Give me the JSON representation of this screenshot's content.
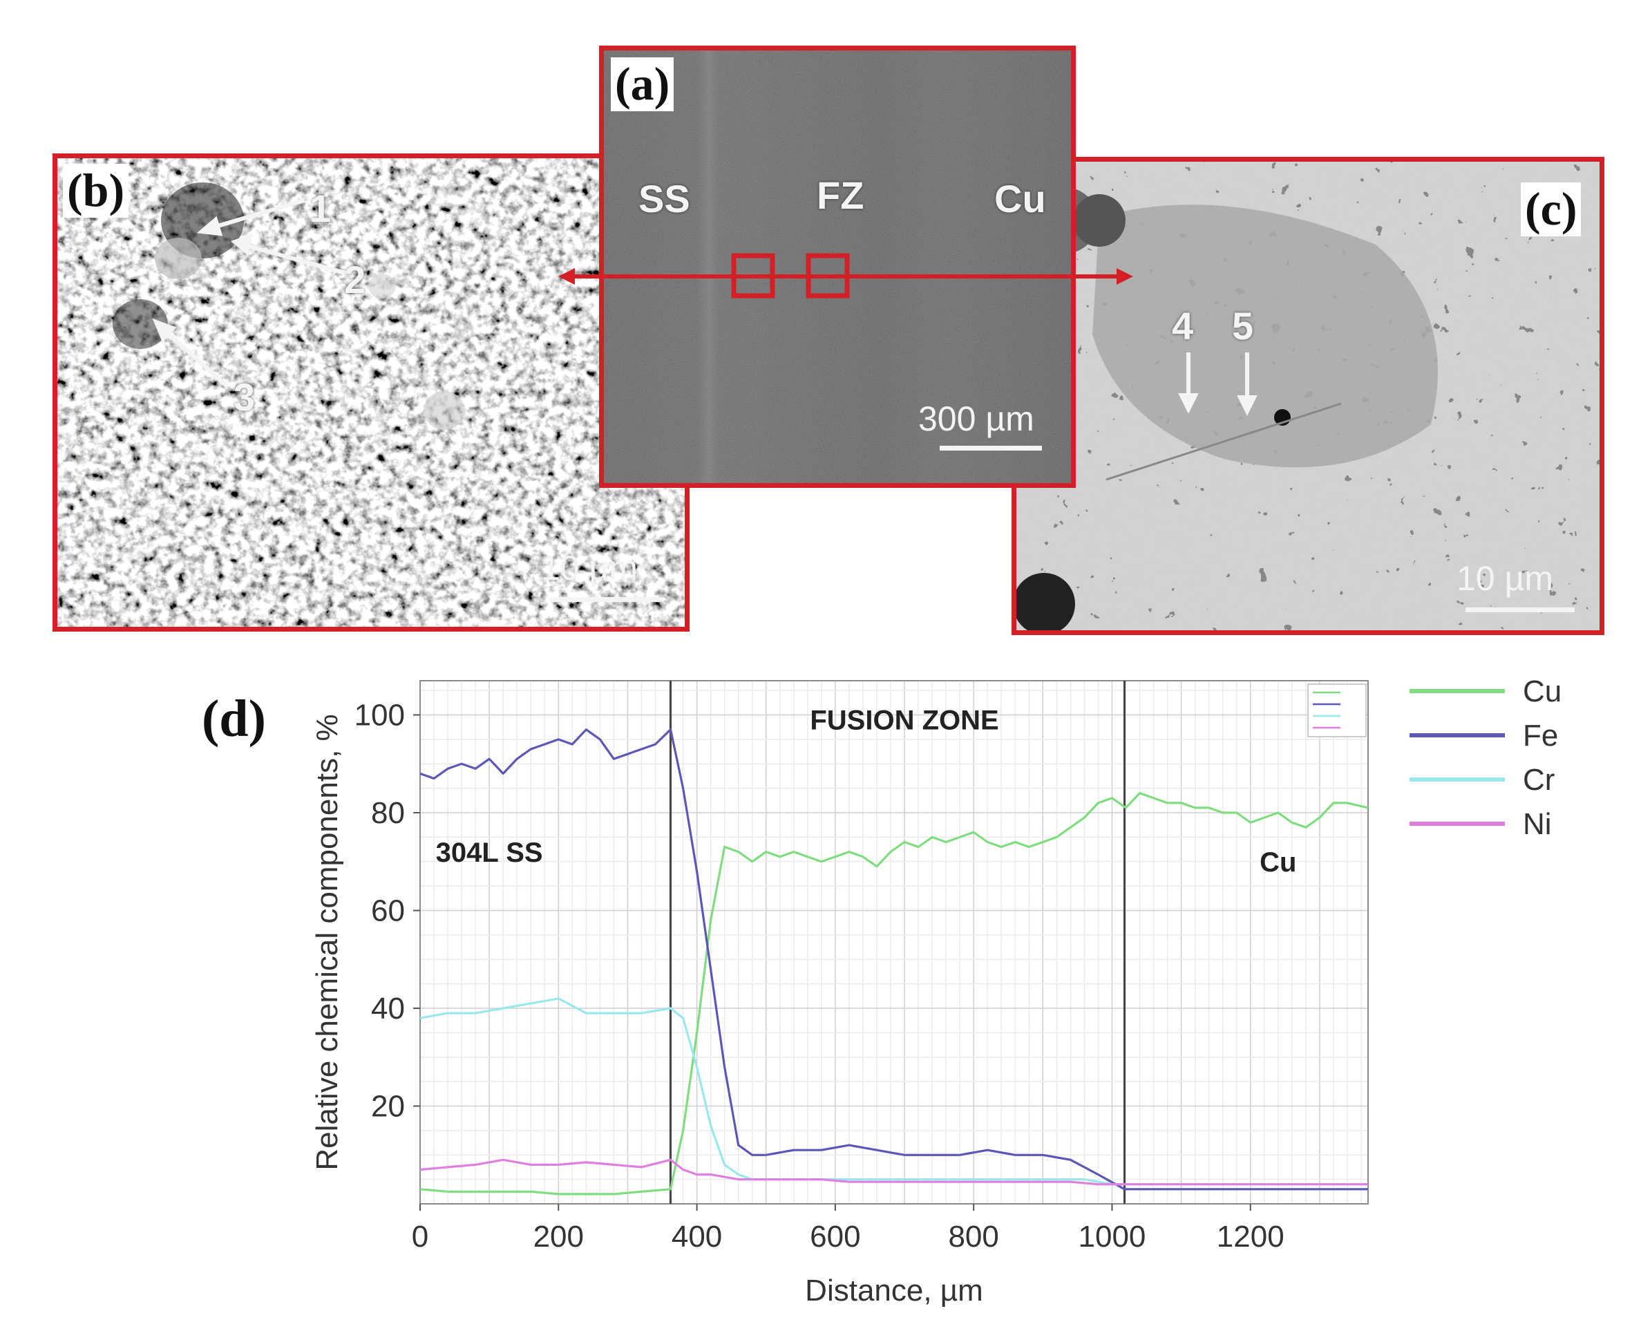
{
  "panels": {
    "a": {
      "tag": "(a)",
      "labels": {
        "ss": "SS",
        "fz": "FZ",
        "cu": "Cu"
      },
      "scale": "300 µm"
    },
    "b": {
      "tag": "(b)",
      "markers": [
        "1",
        "2",
        "3"
      ],
      "scale": "10 µm"
    },
    "c": {
      "tag": "(c)",
      "markers": [
        "4",
        "5"
      ],
      "scale": "10 µm"
    },
    "d": {
      "tag": "(d)"
    }
  },
  "colors": {
    "frame": "#d31f26",
    "Cu": "#7fdc7f",
    "Fe": "#5b57b8",
    "Cr": "#9ae7ee",
    "Ni": "#e07fe0"
  },
  "chart_data": {
    "type": "line",
    "title": "",
    "xlabel": "Distance, µm",
    "ylabel": "Relative chemical components, %",
    "xlim": [
      0,
      1370
    ],
    "ylim": [
      0,
      107
    ],
    "xticks": [
      "0",
      "200",
      "400",
      "600",
      "800",
      "1000",
      "1200"
    ],
    "yticks": [
      "20",
      "40",
      "60",
      "80",
      "100"
    ],
    "grid": true,
    "legend_position": "right",
    "region_boundaries": [
      362,
      1018
    ],
    "region_labels": [
      {
        "text": "304L SS",
        "x": 100,
        "y": 70
      },
      {
        "text": "FUSION ZONE",
        "x": 700,
        "y": 97
      },
      {
        "text": "Cu",
        "x": 1240,
        "y": 68
      }
    ],
    "series": [
      {
        "name": "Cu",
        "x": [
          0,
          40,
          80,
          120,
          160,
          200,
          240,
          280,
          320,
          362,
          380,
          400,
          420,
          440,
          460,
          480,
          500,
          520,
          540,
          560,
          580,
          600,
          620,
          640,
          660,
          680,
          700,
          720,
          740,
          760,
          780,
          800,
          820,
          840,
          860,
          880,
          900,
          920,
          940,
          960,
          980,
          1000,
          1020,
          1040,
          1060,
          1080,
          1100,
          1120,
          1140,
          1160,
          1180,
          1200,
          1220,
          1240,
          1260,
          1280,
          1300,
          1320,
          1340,
          1370
        ],
        "values": [
          3,
          2.5,
          2.5,
          2.5,
          2.5,
          2,
          2,
          2,
          2.5,
          3,
          15,
          35,
          58,
          73,
          72,
          70,
          72,
          71,
          72,
          71,
          70,
          71,
          72,
          71,
          69,
          72,
          74,
          73,
          75,
          74,
          75,
          76,
          74,
          73,
          74,
          73,
          74,
          75,
          77,
          79,
          82,
          83,
          81,
          84,
          83,
          82,
          82,
          81,
          81,
          80,
          80,
          78,
          79,
          80,
          78,
          77,
          79,
          82,
          82,
          81
        ]
      },
      {
        "name": "Fe",
        "x": [
          0,
          20,
          40,
          60,
          80,
          100,
          120,
          140,
          160,
          180,
          200,
          220,
          240,
          260,
          280,
          300,
          320,
          340,
          362,
          380,
          400,
          420,
          440,
          460,
          480,
          500,
          540,
          580,
          620,
          660,
          700,
          740,
          780,
          820,
          860,
          900,
          940,
          980,
          1018,
          1060,
          1100,
          1140,
          1180,
          1220,
          1260,
          1300,
          1340,
          1370
        ],
        "values": [
          88,
          87,
          89,
          90,
          89,
          91,
          88,
          91,
          93,
          94,
          95,
          94,
          97,
          95,
          91,
          92,
          93,
          94,
          97,
          85,
          68,
          48,
          28,
          12,
          10,
          10,
          11,
          11,
          12,
          11,
          10,
          10,
          10,
          11,
          10,
          10,
          9,
          6,
          3,
          3,
          3,
          3,
          3,
          3,
          3,
          3,
          3,
          3
        ]
      },
      {
        "name": "Cr",
        "x": [
          0,
          40,
          80,
          120,
          160,
          200,
          240,
          280,
          320,
          362,
          380,
          400,
          420,
          440,
          460,
          480,
          520,
          560,
          600,
          640,
          680,
          720,
          760,
          800,
          840,
          880,
          920,
          960,
          1000,
          1018,
          1060,
          1100,
          1140,
          1180,
          1220,
          1260,
          1300,
          1340,
          1370
        ],
        "values": [
          38,
          39,
          39,
          40,
          41,
          42,
          39,
          39,
          39,
          40,
          38,
          28,
          16,
          8,
          6,
          5,
          5,
          5,
          5,
          5,
          5,
          5,
          5,
          5,
          5,
          5,
          5,
          5,
          4,
          4,
          4,
          4,
          4,
          4,
          4,
          4,
          4,
          4,
          4
        ]
      },
      {
        "name": "Ni",
        "x": [
          0,
          40,
          80,
          120,
          160,
          200,
          240,
          280,
          320,
          362,
          380,
          400,
          420,
          440,
          460,
          500,
          540,
          580,
          620,
          660,
          700,
          740,
          780,
          820,
          860,
          900,
          940,
          980,
          1018,
          1060,
          1100,
          1140,
          1180,
          1220,
          1260,
          1300,
          1340,
          1370
        ],
        "values": [
          7,
          7.5,
          8,
          9,
          8,
          8,
          8.5,
          8,
          7.5,
          9,
          7,
          6,
          6,
          5.5,
          5,
          5,
          5,
          5,
          4.5,
          4.5,
          4.5,
          4.5,
          4.5,
          4.5,
          4.5,
          4.5,
          4.5,
          4,
          4,
          4,
          4,
          4,
          4,
          4,
          4,
          4,
          4,
          4
        ]
      }
    ]
  }
}
